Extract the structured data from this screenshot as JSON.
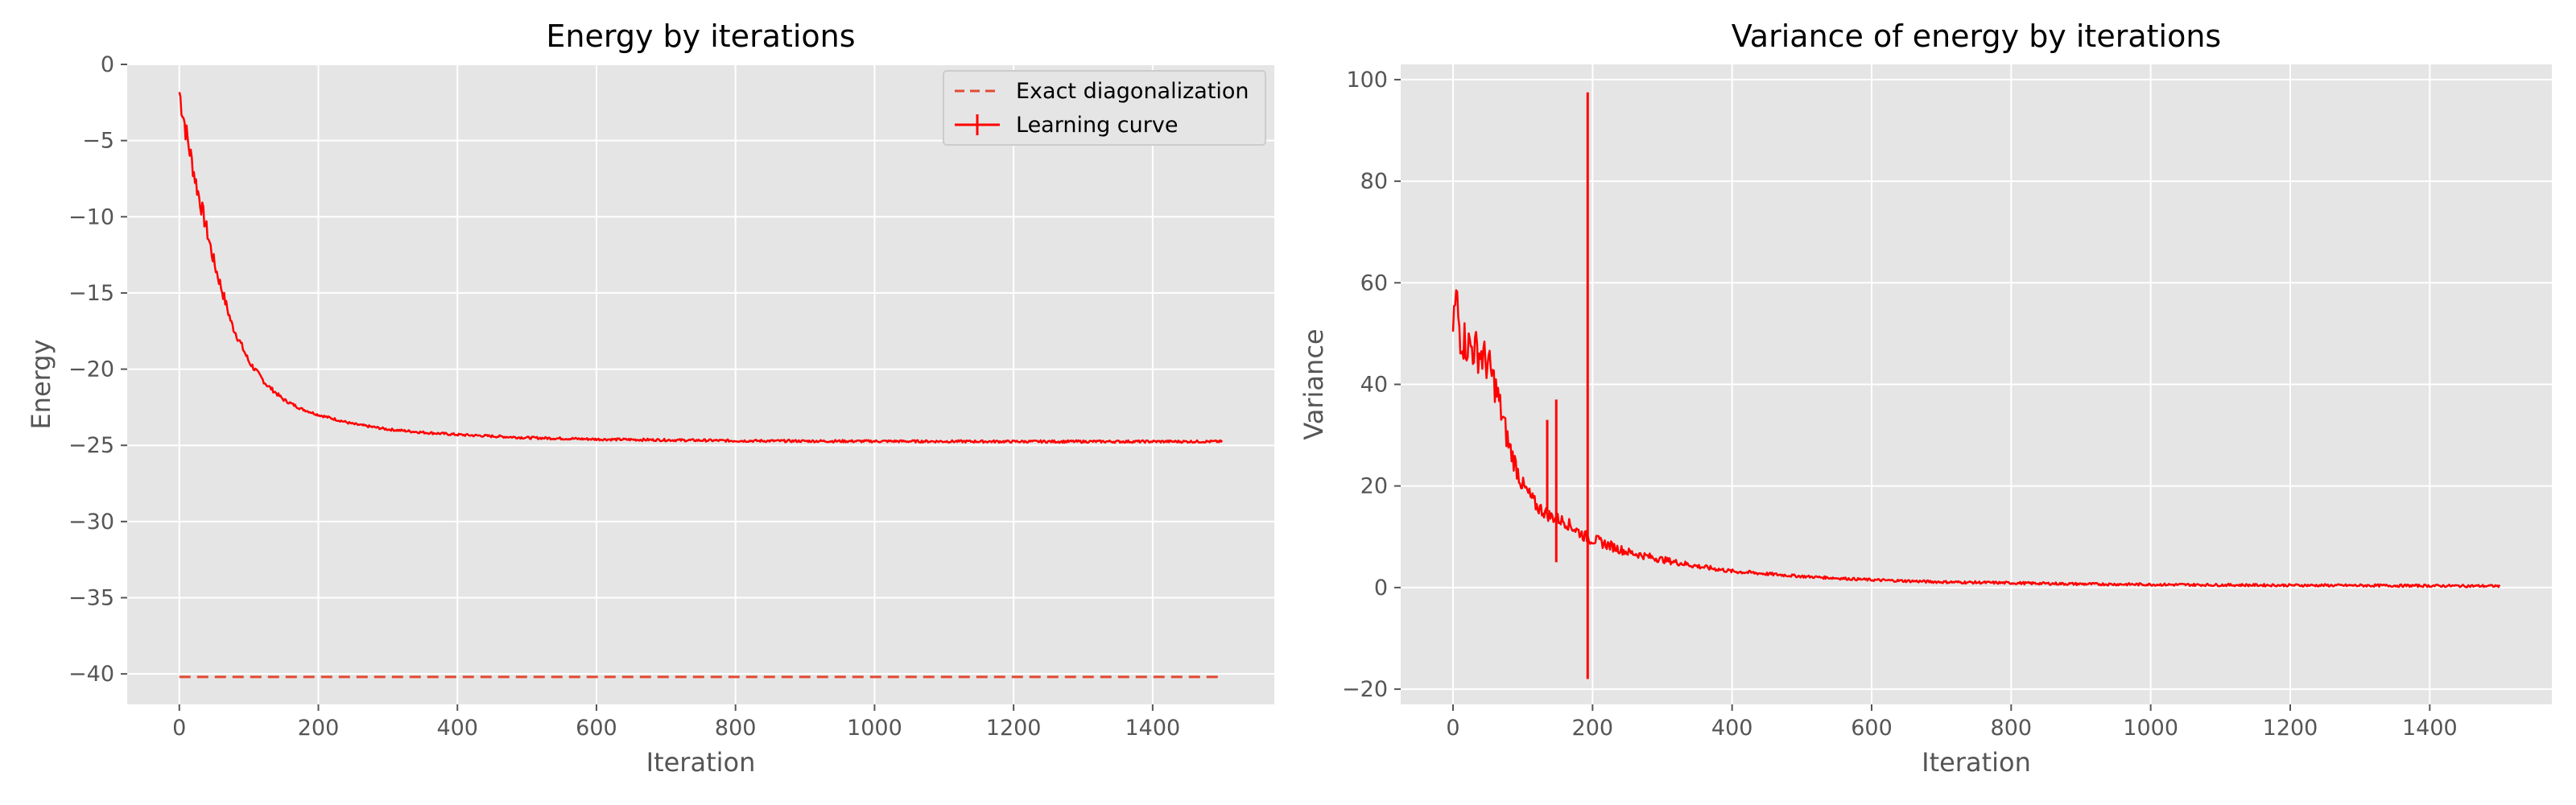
{
  "chart_data": [
    {
      "type": "line",
      "title": "Energy by iterations",
      "xlabel": "Iteration",
      "ylabel": "Energy",
      "xlim": [
        -75,
        1575
      ],
      "ylim": [
        -42,
        0
      ],
      "xticks": [
        0,
        200,
        400,
        600,
        800,
        1000,
        1200,
        1400
      ],
      "yticks": [
        0,
        -5,
        -10,
        -15,
        -20,
        -25,
        -30,
        -35,
        -40
      ],
      "grid": true,
      "legend": {
        "position": "top-right",
        "entries": [
          {
            "label": "Exact diagonalization",
            "style": "dashed",
            "color": "#E24A33"
          },
          {
            "label": "Learning curve",
            "style": "solid-errorbar",
            "color": "#FF0000"
          }
        ]
      },
      "series": [
        {
          "name": "Exact diagonalization",
          "style": "dashed",
          "color": "#E24A33",
          "x": [
            0,
            1500
          ],
          "y": [
            -40.2,
            -40.2
          ]
        },
        {
          "name": "Learning curve",
          "style": "solid",
          "color": "#FF0000",
          "x": [
            0,
            10,
            25,
            50,
            75,
            100,
            125,
            150,
            175,
            200,
            250,
            300,
            350,
            400,
            500,
            600,
            700,
            800,
            900,
            1000,
            1100,
            1200,
            1300,
            1400,
            1500
          ],
          "y": [
            -1.8,
            -4.5,
            -8.0,
            -13.0,
            -17.0,
            -19.5,
            -21.0,
            -22.0,
            -22.6,
            -23.0,
            -23.6,
            -23.95,
            -24.15,
            -24.3,
            -24.5,
            -24.6,
            -24.65,
            -24.7,
            -24.72,
            -24.73,
            -24.74,
            -24.75,
            -24.75,
            -24.75,
            -24.75
          ]
        }
      ]
    },
    {
      "type": "line",
      "title": "Variance of energy by iterations",
      "xlabel": "Iteration",
      "ylabel": "Variance",
      "xlim": [
        -75,
        1575
      ],
      "ylim": [
        -23,
        103
      ],
      "xticks": [
        0,
        200,
        400,
        600,
        800,
        1000,
        1200,
        1400
      ],
      "yticks": [
        -20,
        0,
        20,
        40,
        60,
        80,
        100
      ],
      "grid": true,
      "series": [
        {
          "name": "Variance",
          "style": "solid",
          "color": "#FF0000",
          "x": [
            0,
            5,
            10,
            20,
            30,
            40,
            50,
            60,
            70,
            80,
            90,
            100,
            110,
            120,
            130,
            140,
            150,
            160,
            170,
            180,
            190,
            200,
            220,
            250,
            300,
            350,
            400,
            500,
            600,
            700,
            800,
            900,
            1000,
            1100,
            1200,
            1300,
            1400,
            1500
          ],
          "y": [
            52,
            57,
            50,
            48,
            47,
            46,
            44,
            40,
            34,
            28,
            24,
            20,
            18,
            16,
            15,
            14,
            13.5,
            13,
            12,
            11,
            10,
            9.5,
            8.5,
            7,
            5.5,
            4.2,
            3.2,
            2.2,
            1.5,
            1.1,
            0.9,
            0.7,
            0.6,
            0.5,
            0.45,
            0.4,
            0.35,
            0.3
          ],
          "spikes": [
            {
              "x": 135,
              "low": 15,
              "high": 33
            },
            {
              "x": 148,
              "low": 5,
              "high": 37
            },
            {
              "x": 193,
              "low": -18,
              "high": 97.5
            }
          ]
        }
      ]
    }
  ]
}
